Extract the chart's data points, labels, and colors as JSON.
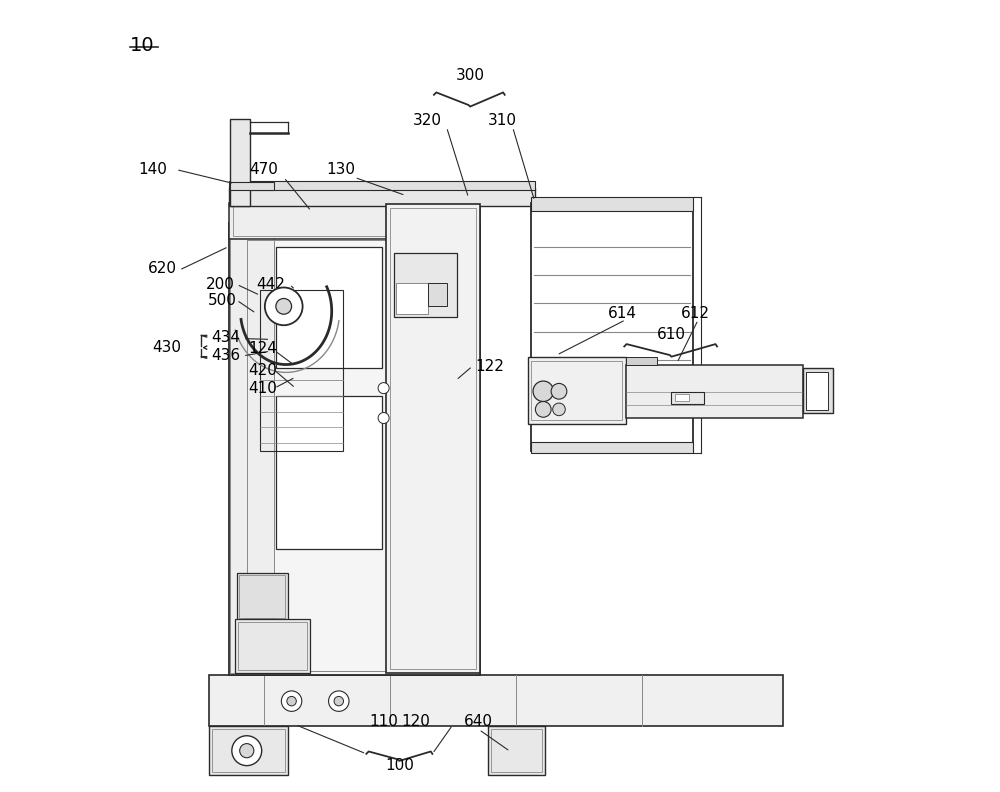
{
  "bg_color": "#ffffff",
  "line_color": "#2a2a2a",
  "light_gray": "#aaaaaa",
  "mid_gray": "#888888",
  "dark_gray": "#555555",
  "fig_width": 10.0,
  "fig_height": 7.92,
  "dpi": 100
}
